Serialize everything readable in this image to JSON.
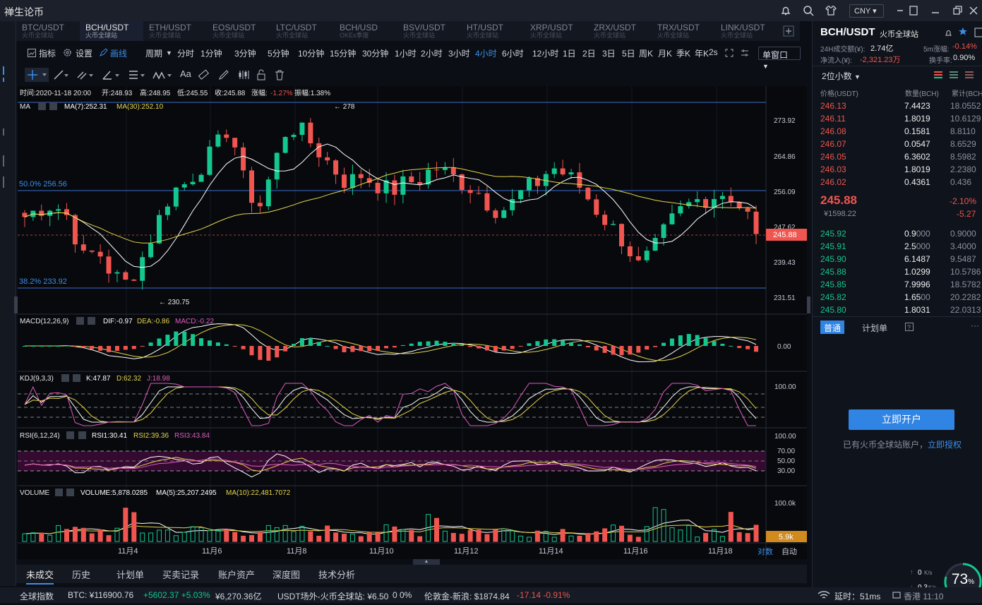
{
  "app": {
    "title": "禅生论币",
    "currency": "CNY"
  },
  "tabs": [
    {
      "pair": "BTC/USDT",
      "exch": "火币全球站"
    },
    {
      "pair": "BCH/USDT",
      "exch": "火币全球站"
    },
    {
      "pair": "ETH/USDT",
      "exch": "火币全球站"
    },
    {
      "pair": "EOS/USDT",
      "exch": "火币全球站"
    },
    {
      "pair": "LTC/USDT",
      "exch": "火币全球站"
    },
    {
      "pair": "BCH/USD",
      "exch": "OKEx季度"
    },
    {
      "pair": "BSV/USDT",
      "exch": "火币全球站"
    },
    {
      "pair": "HT/USDT",
      "exch": "火币全球站"
    },
    {
      "pair": "XRP/USDT",
      "exch": "火币全球站"
    },
    {
      "pair": "ZRX/USDT",
      "exch": "火币全球站"
    },
    {
      "pair": "TRX/USDT",
      "exch": "火币全球站"
    },
    {
      "pair": "LINK/USDT",
      "exch": "火币全球站"
    }
  ],
  "toolbar": {
    "indicator": "指标",
    "settings": "设置",
    "draw": "画线",
    "period": "周期",
    "timeframes": [
      "分时",
      "1分钟",
      "3分钟",
      "5分钟",
      "10分钟",
      "15分钟",
      "30分钟",
      "1小时",
      "2小时",
      "3小时",
      "4小时",
      "6小时",
      "12小时",
      "1日",
      "2日",
      "3日",
      "5日",
      "周K",
      "月K",
      "季K",
      "年K"
    ],
    "active_tf": "4小时",
    "refresh": "2s",
    "window": "单窗口"
  },
  "drawtools": {
    "text": "Aa"
  },
  "chart": {
    "info": {
      "time": "时间:2020-11-18 20:00",
      "open": "开:248.93",
      "high": "高:248.95",
      "low": "低:245.55",
      "close": "收:245.88",
      "chg_label": "涨幅:",
      "chg": "-1.27%",
      "amp": "振幅:1.38%"
    },
    "ma": {
      "label": "MA",
      "ma7": "MA(7):252.31",
      "ma30": "MA(30):252.10"
    },
    "prices": [
      "273.92",
      "264.86",
      "256.09",
      "247.62",
      "239.43",
      "231.51"
    ],
    "last": "245.88",
    "hi_mark": "← 278",
    "lo_mark": "← 230.75",
    "fib50": "50.0% 256.56",
    "fib382": "38.2% 233.92",
    "macd": {
      "label": "MACD(12,26,9)",
      "dif": "DIF:-0.97",
      "dea": "DEA:-0.86",
      "macd": "MACD:-0.22",
      "zero": "0.00"
    },
    "kdj": {
      "label": "KDJ(9,3,3)",
      "k": "K:47.87",
      "d": "D:62.32",
      "j": "J:18.98",
      "top": "100.00"
    },
    "rsi": {
      "label": "RSI(6,12,24)",
      "r1": "RSI1:30.41",
      "r2": "RSI2:39.36",
      "r3": "RSI3:43.84",
      "levels": [
        "100.00",
        "70.00",
        "50.00",
        "30.00"
      ]
    },
    "vol": {
      "label": "VOLUME",
      "v": "VOLUME:5,878.0285",
      "ma5": "MA(5):25,207.2495",
      "ma10": "MA(10):22,481.7072",
      "top": "100.0k",
      "last": "5.9k"
    },
    "dates": [
      "11月4",
      "11月6",
      "11月8",
      "11月10",
      "11月12",
      "11月14",
      "11月16",
      "11月18"
    ],
    "scale_log": "对数",
    "scale_auto": "自动"
  },
  "right": {
    "pair": "BCH/USDT",
    "exch": "火币全球站",
    "vol24_label": "24H成交额(¥):",
    "vol24": "2.74亿",
    "change5m_label": "5m涨幅:",
    "change5m": "-0.14%",
    "inflow_label": "净流入(¥):",
    "inflow": "-2,321.23万",
    "turnover_label": "换手率:",
    "turnover": "0.90%",
    "decimals": "2位小数",
    "hdr": {
      "price": "价格(USDT)",
      "qty": "数量(BCH)",
      "cum": "累计(BCH"
    },
    "asks": [
      [
        "246.13",
        "7.4423",
        "18.0552"
      ],
      [
        "246.11",
        "1.8019",
        "10.6129"
      ],
      [
        "246.08",
        "0.1581",
        "8.8110"
      ],
      [
        "246.07",
        "0.0547",
        "8.6529"
      ],
      [
        "246.05",
        "6.3602",
        "8.5982"
      ],
      [
        "246.03",
        "1.8019",
        "2.2380"
      ],
      [
        "246.02",
        "0.4361",
        "0.436"
      ]
    ],
    "last": "245.88",
    "last_cny": "¥1598.22",
    "pct": "-2.10%",
    "chg": "-5.27",
    "bids": [
      [
        "245.92",
        "0.9",
        "000",
        "0.9000"
      ],
      [
        "245.91",
        "2.5",
        "000",
        "3.4000"
      ],
      [
        "245.90",
        "6.1487",
        "",
        "9.5487"
      ],
      [
        "245.88",
        "1.0299",
        "",
        "10.5786"
      ],
      [
        "245.85",
        "7.9996",
        "",
        "18.5782"
      ],
      [
        "245.82",
        "1.65",
        "00",
        "20.2282"
      ],
      [
        "245.80",
        "1.8031",
        "",
        "22.0313"
      ]
    ],
    "tab_normal": "普通",
    "tab_plan": "计划单",
    "open_btn": "立即开户",
    "have_acct": "已有火币全球站账户，",
    "auth": "立即授权",
    "net_up": "0",
    "net_up_u": "K/s",
    "net_dn": "0.3",
    "net_dn_u": "K/s",
    "cpu": "73",
    "cpu_unit": "%"
  },
  "bottom_tabs": [
    "未成交",
    "历史",
    "计划单",
    "买卖记录",
    "账户资产",
    "深度图",
    "技术分析"
  ],
  "status": {
    "idx": "全球指数",
    "btc": "BTC: ¥116900.76",
    "btc_chg": "+5602.37 +5.03%",
    "btc_cap": "¥6,270.36亿",
    "usdt": "USDT场外-火币全球站: ¥6.50",
    "usdt_pct": "0 0%",
    "gold": "伦敦金-新浪: $1874.84",
    "gold_chg": "-17.14 -0.91%",
    "latency": "延时：51ms",
    "net": "香港 11:10"
  },
  "colors": {
    "up": "#14c78e",
    "down": "#f1554f",
    "accent": "#2f84e4",
    "ma7": "#ffffff",
    "ma30": "#e5d54a"
  }
}
